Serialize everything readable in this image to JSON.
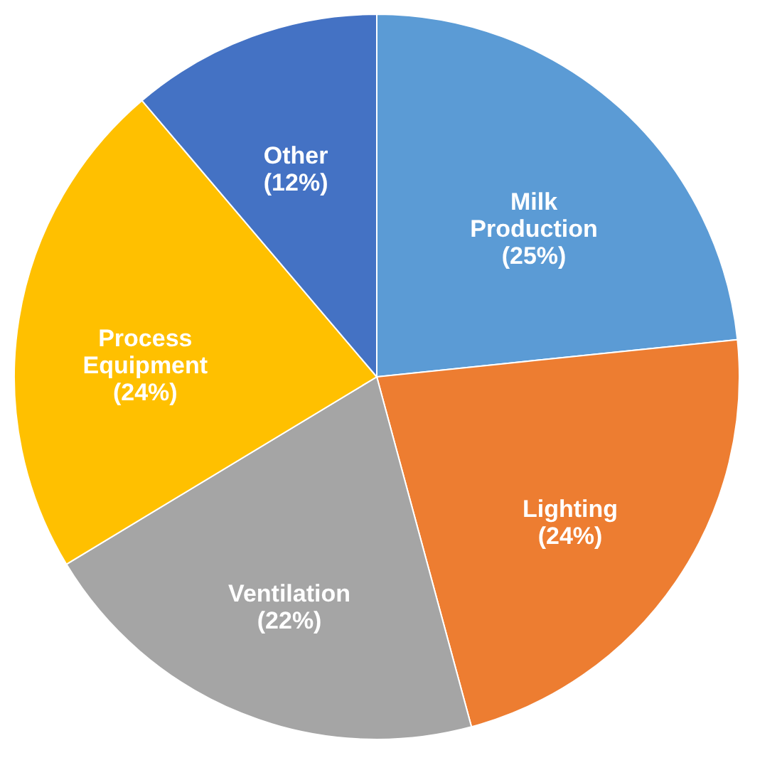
{
  "chart_data": {
    "type": "pie",
    "categories": [
      "Milk Production",
      "Lighting",
      "Ventilation",
      "Process Equipment",
      "Other"
    ],
    "values": [
      25,
      24,
      22,
      24,
      12
    ],
    "value_labels": [
      "(25%)",
      "(24%)",
      "(22%)",
      "(24%)",
      "(12%)"
    ],
    "colors": [
      "#5b9bd5",
      "#ed7d31",
      "#a5a5a5",
      "#ffc000",
      "#4472c4"
    ],
    "legend": false
  }
}
